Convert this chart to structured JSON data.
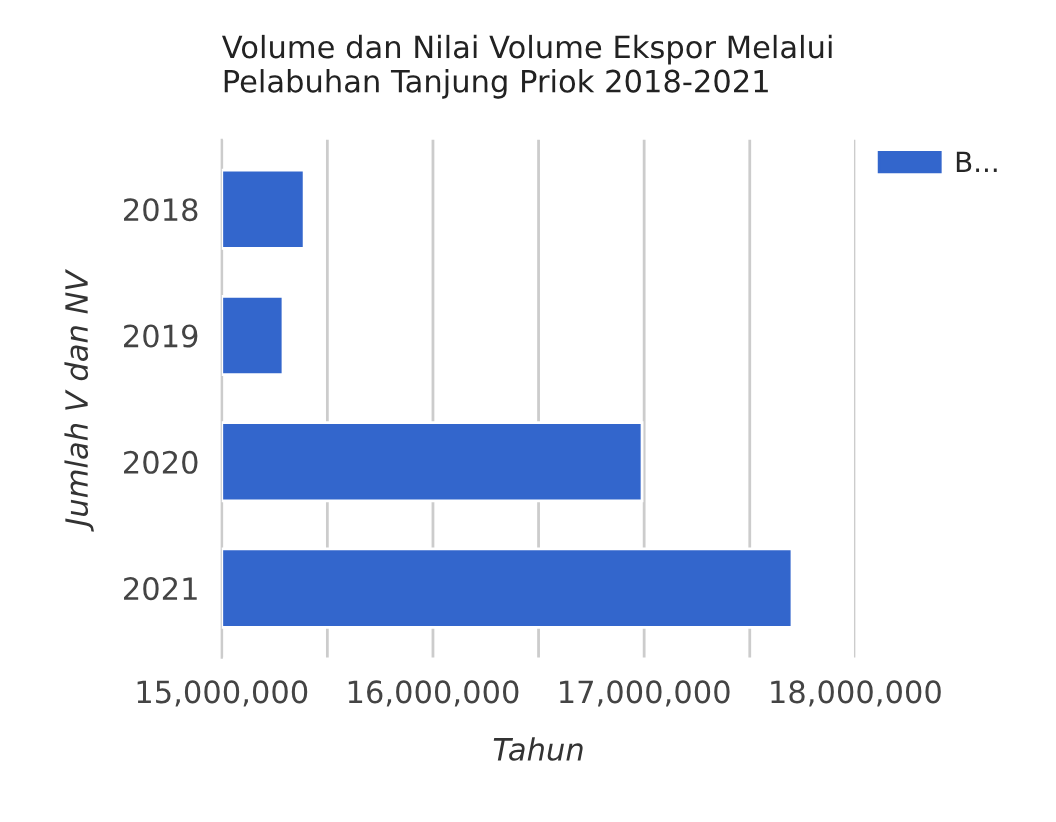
{
  "chart_data": {
    "type": "bar",
    "orientation": "horizontal",
    "title": "Volume dan Nilai Volume Ekspor Melalui\nPelabuhan Tanjung Priok 2018-2021",
    "xlabel": "Tahun",
    "ylabel": "Jumlah V dan NV",
    "categories": [
      "2018",
      "2019",
      "2020",
      "2021"
    ],
    "series": [
      {
        "name": "B...",
        "color": "#3366cc",
        "values": [
          15390000,
          15290000,
          16990000,
          17700000
        ]
      }
    ],
    "xlim": [
      15000000,
      18000000
    ],
    "xticks": [
      {
        "value": 15000000,
        "label": "15,000,000"
      },
      {
        "value": 15500000,
        "label": null
      },
      {
        "value": 16000000,
        "label": "16,000,000"
      },
      {
        "value": 16500000,
        "label": null
      },
      {
        "value": 17000000,
        "label": "17,000,000"
      },
      {
        "value": 17500000,
        "label": null
      },
      {
        "value": 18000000,
        "label": "18,000,000"
      }
    ],
    "grid": "x",
    "legend": "top right"
  }
}
